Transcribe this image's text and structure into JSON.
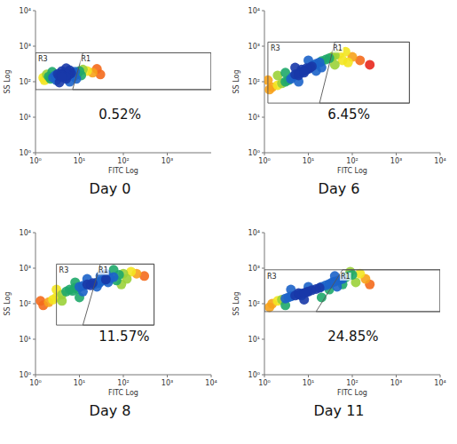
{
  "chart_data": [
    {
      "type": "scatter",
      "title": "Day 0",
      "x_label": "FITC Log",
      "y_label": "SS Log",
      "log": true,
      "xlim": [
        1,
        10000
      ],
      "ylim": [
        1,
        10000
      ],
      "xticks": [
        {
          "value": 1,
          "label": "10⁰"
        },
        {
          "value": 10,
          "label": "10¹"
        },
        {
          "value": 100,
          "label": "10²"
        },
        {
          "value": 1000,
          "label": "10³"
        }
      ],
      "yticks": [
        {
          "value": 1,
          "label": "10⁰"
        },
        {
          "value": 10,
          "label": "10¹"
        },
        {
          "value": 100,
          "label": "10²"
        },
        {
          "value": 1000,
          "label": "10³"
        },
        {
          "value": 10000,
          "label": "10⁴"
        }
      ],
      "x": [
        4,
        3.5,
        4.5,
        5,
        3,
        4,
        4.2,
        3.8,
        5.5,
        2.8,
        3.2,
        4.8,
        6,
        2.5,
        6.5,
        2.2,
        7,
        2,
        8,
        3,
        5,
        4,
        6,
        1.8,
        9,
        10,
        7.5,
        1.6,
        3.5,
        12,
        15,
        20,
        25,
        2.4,
        5,
        30,
        1.5,
        8.5,
        11,
        6
      ],
      "values": [
        150,
        145,
        155,
        160,
        140,
        135,
        170,
        160,
        150,
        150,
        165,
        140,
        165,
        130,
        175,
        120,
        180,
        140,
        190,
        110,
        120,
        200,
        210,
        160,
        170,
        200,
        140,
        110,
        95,
        220,
        200,
        180,
        230,
        190,
        240,
        160,
        130,
        120,
        150,
        100
      ],
      "annotation": "0.52%",
      "gates": [
        {
          "label": "R3",
          "x": [
            1,
            10000,
            10000,
            1
          ],
          "y": [
            60,
            60,
            650,
            650
          ]
        },
        {
          "label": "R1",
          "x": [
            7,
            10000,
            10000,
            12
          ],
          "y": [
            60,
            60,
            650,
            650
          ]
        }
      ]
    },
    {
      "type": "scatter",
      "title": "Day 6",
      "x_label": "FITC Log",
      "y_label": "SS Log",
      "log": true,
      "xlim": [
        1,
        10000
      ],
      "ylim": [
        1,
        10000
      ],
      "xticks": [
        {
          "value": 1,
          "label": "10⁰"
        },
        {
          "value": 10,
          "label": "10¹"
        },
        {
          "value": 100,
          "label": "10²"
        },
        {
          "value": 1000,
          "label": "10³"
        },
        {
          "value": 10000,
          "label": "10⁴"
        }
      ],
      "yticks": [
        {
          "value": 1,
          "label": "10⁰"
        },
        {
          "value": 10,
          "label": "10¹"
        },
        {
          "value": 100,
          "label": "10²"
        },
        {
          "value": 1000,
          "label": "10³"
        },
        {
          "value": 10000,
          "label": "10⁴"
        }
      ],
      "x": [
        8,
        7,
        9,
        6,
        10,
        5,
        11,
        8,
        7,
        9,
        6,
        12,
        4.5,
        13,
        4,
        15,
        3.5,
        18,
        3,
        20,
        2.5,
        25,
        2,
        30,
        35,
        40,
        50,
        1.5,
        1.3,
        60,
        80,
        100,
        150,
        5,
        15,
        3,
        20,
        10,
        2,
        40,
        1.2,
        70,
        250,
        6
      ],
      "values": [
        200,
        190,
        215,
        170,
        230,
        160,
        250,
        180,
        220,
        240,
        150,
        270,
        140,
        290,
        120,
        320,
        110,
        350,
        100,
        380,
        90,
        420,
        80,
        460,
        500,
        550,
        600,
        70,
        60,
        400,
        350,
        500,
        400,
        250,
        200,
        180,
        250,
        400,
        150,
        300,
        110,
        700,
        300,
        100
      ],
      "annotation": "6.45%",
      "gates": [
        {
          "label": "R3",
          "x": [
            1.2,
            2000,
            2000,
            1.2
          ],
          "y": [
            25,
            25,
            1300,
            1300
          ]
        },
        {
          "label": "R1",
          "x": [
            18,
            2000,
            2000,
            40
          ],
          "y": [
            25,
            25,
            1300,
            1300
          ]
        }
      ]
    },
    {
      "type": "scatter",
      "title": "Day 8",
      "x_label": "FITC Log",
      "y_label": "SS Log",
      "log": true,
      "xlim": [
        1,
        10000
      ],
      "ylim": [
        1,
        10000
      ],
      "xticks": [
        {
          "value": 1,
          "label": "10⁰"
        },
        {
          "value": 10,
          "label": "10¹"
        },
        {
          "value": 100,
          "label": "10²"
        },
        {
          "value": 1000,
          "label": "10³"
        },
        {
          "value": 10000,
          "label": "10⁴"
        }
      ],
      "yticks": [
        {
          "value": 1,
          "label": "10⁰"
        },
        {
          "value": 10,
          "label": "10¹"
        },
        {
          "value": 100,
          "label": "10²"
        },
        {
          "value": 1000,
          "label": "10³"
        },
        {
          "value": 10000,
          "label": "10⁴"
        }
      ],
      "x": [
        6,
        8,
        10,
        12,
        7,
        5,
        9,
        15,
        20,
        25,
        30,
        35,
        28,
        22,
        40,
        18,
        4,
        3,
        2.5,
        50,
        60,
        80,
        100,
        2,
        1.5,
        45,
        15,
        8,
        30,
        70,
        120,
        150,
        200,
        3,
        4,
        12,
        60,
        25,
        10,
        1.3,
        40,
        90,
        300
      ],
      "values": [
        250,
        280,
        300,
        320,
        230,
        220,
        260,
        350,
        380,
        400,
        420,
        450,
        380,
        360,
        480,
        330,
        180,
        150,
        130,
        520,
        560,
        650,
        700,
        110,
        90,
        400,
        500,
        400,
        600,
        450,
        500,
        800,
        700,
        250,
        120,
        220,
        900,
        300,
        150,
        120,
        700,
        350,
        600
      ],
      "annotation": "11.57%",
      "gates": [
        {
          "label": "R3",
          "x": [
            3,
            500,
            500,
            3
          ],
          "y": [
            25,
            25,
            1300,
            1300
          ]
        },
        {
          "label": "R1",
          "x": [
            12,
            500,
            500,
            30
          ],
          "y": [
            25,
            25,
            1300,
            1300
          ]
        }
      ]
    },
    {
      "type": "scatter",
      "title": "Day 11",
      "x_label": "FITC Log",
      "y_label": "SS Log",
      "log": true,
      "xlim": [
        1,
        10000
      ],
      "ylim": [
        1,
        10000
      ],
      "xticks": [
        {
          "value": 1,
          "label": "10⁰"
        },
        {
          "value": 10,
          "label": "10¹"
        },
        {
          "value": 100,
          "label": "10²"
        },
        {
          "value": 1000,
          "label": "10³"
        },
        {
          "value": 10000,
          "label": "10⁴"
        }
      ],
      "yticks": [
        {
          "value": 1,
          "label": "10⁰"
        },
        {
          "value": 10,
          "label": "10¹"
        },
        {
          "value": 100,
          "label": "10²"
        },
        {
          "value": 1000,
          "label": "10³"
        },
        {
          "value": 10000,
          "label": "10⁴"
        }
      ],
      "x": [
        6,
        7,
        5,
        8,
        9,
        4,
        10,
        6,
        7,
        12,
        3.5,
        15,
        3,
        18,
        20,
        2.5,
        25,
        30,
        2,
        35,
        40,
        50,
        60,
        1.5,
        70,
        80,
        100,
        1.3,
        45,
        30,
        60,
        120,
        150,
        200,
        90,
        10,
        4,
        3,
        20,
        250,
        8,
        40
      ],
      "values": [
        180,
        190,
        170,
        200,
        210,
        160,
        220,
        200,
        170,
        240,
        150,
        260,
        140,
        280,
        300,
        130,
        330,
        360,
        120,
        400,
        420,
        460,
        500,
        100,
        550,
        600,
        650,
        80,
        300,
        250,
        350,
        400,
        700,
        500,
        800,
        300,
        250,
        90,
        150,
        350,
        130,
        600
      ],
      "annotation": "24.85%",
      "gates": [
        {
          "label": "R3",
          "x": [
            1,
            10000,
            10000,
            1
          ],
          "y": [
            60,
            60,
            900,
            900
          ]
        },
        {
          "label": "R1",
          "x": [
            15,
            10000,
            10000,
            60
          ],
          "y": [
            60,
            60,
            900,
            900
          ]
        }
      ]
    }
  ]
}
